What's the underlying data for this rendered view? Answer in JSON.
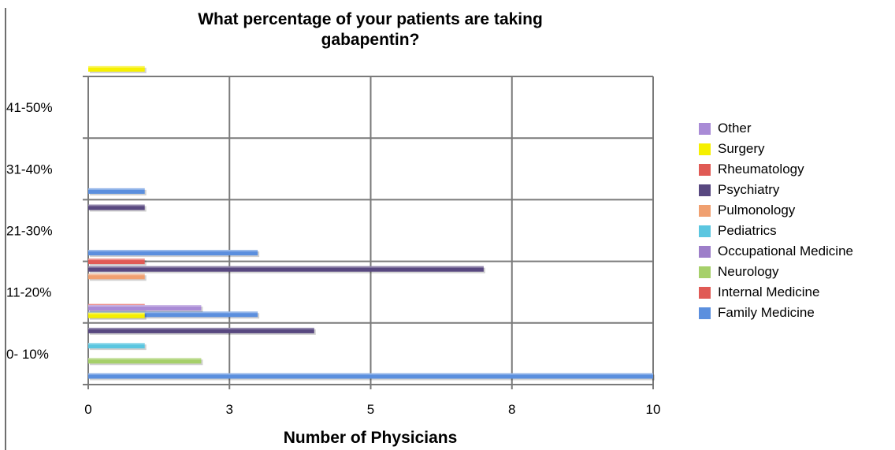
{
  "chart_data": {
    "type": "bar",
    "orientation": "horizontal",
    "title_line1": "What percentage of your patients are taking",
    "title_line2": "gabapentin?",
    "xlabel": "Number of Physicians",
    "ylabel": "",
    "xlim": [
      0,
      10
    ],
    "x_ticks": [
      "0",
      "3",
      "5",
      "8",
      "10"
    ],
    "categories": [
      "0- 10%",
      "11-20%",
      "21-30%",
      "31-40%",
      "41-50%"
    ],
    "grid": true,
    "legend_position": "right",
    "series": [
      {
        "name": "Family Medicine",
        "color": "#5b8fde",
        "values": [
          10,
          3,
          3,
          1,
          0
        ]
      },
      {
        "name": "Internal Medicine",
        "color": "#e05a55",
        "values": [
          0,
          1,
          0,
          0,
          0
        ]
      },
      {
        "name": "Neurology",
        "color": "#a6d06a",
        "values": [
          2,
          0,
          0,
          0,
          0
        ]
      },
      {
        "name": "Occupational Medicine",
        "color": "#9d7ec9",
        "values": [
          0,
          0,
          0,
          0,
          0
        ]
      },
      {
        "name": "Pediatrics",
        "color": "#5bc6e0",
        "values": [
          1,
          0,
          0,
          0,
          0
        ]
      },
      {
        "name": "Pulmonology",
        "color": "#f0a070",
        "values": [
          0,
          1,
          0,
          0,
          0
        ]
      },
      {
        "name": "Psychiatry",
        "color": "#584880",
        "values": [
          4,
          7,
          1,
          0,
          0
        ]
      },
      {
        "name": "Rheumatology",
        "color": "#e05a55",
        "values": [
          0,
          1,
          0,
          0,
          0
        ]
      },
      {
        "name": "Surgery",
        "color": "#f6f000",
        "values": [
          1,
          0,
          0,
          0,
          1
        ]
      },
      {
        "name": "Other",
        "color": "#a98bd6",
        "values": [
          2,
          0,
          0,
          0,
          0
        ]
      }
    ]
  }
}
